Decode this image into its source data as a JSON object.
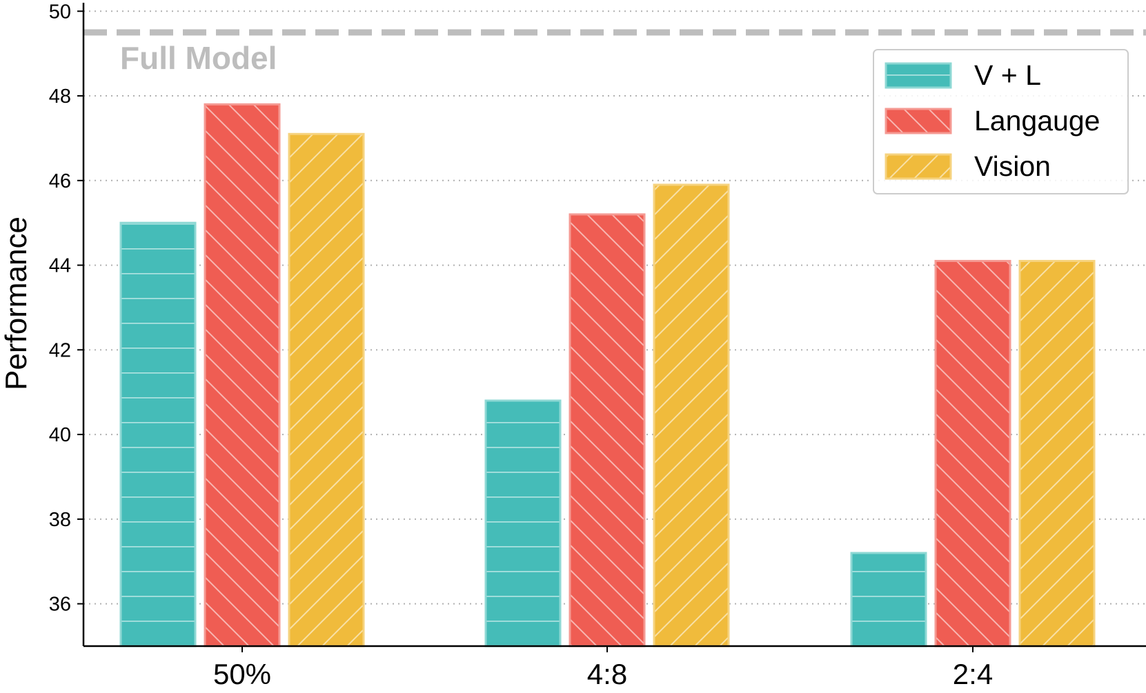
{
  "chart_data": {
    "type": "bar",
    "title": "",
    "xlabel": "",
    "ylabel": "Performance",
    "categories": [
      "50%",
      "4:8",
      "2:4"
    ],
    "series": [
      {
        "name": "V + L",
        "values": [
          45.0,
          40.8,
          37.2
        ],
        "color": "#45bcb8",
        "edge": "#8ed8d4",
        "hatch": "horizontal"
      },
      {
        "name": "Langauge",
        "values": [
          47.8,
          45.2,
          44.1
        ],
        "color": "#ef5d53",
        "edge": "#f59a93",
        "hatch": "backslash"
      },
      {
        "name": "Vision",
        "values": [
          47.1,
          45.9,
          44.1
        ],
        "color": "#f0bb3c",
        "edge": "#f6d37f",
        "hatch": "slash"
      }
    ],
    "ylim": [
      35,
      50.2
    ],
    "yticks": [
      36,
      38,
      40,
      42,
      44,
      46,
      48,
      50
    ],
    "grid": "horizontal dotted",
    "legend_position": "top-right",
    "reference_line": {
      "label": "Full Model",
      "value": 49.5,
      "color": "#bdbdbd",
      "style": "dashed"
    }
  }
}
